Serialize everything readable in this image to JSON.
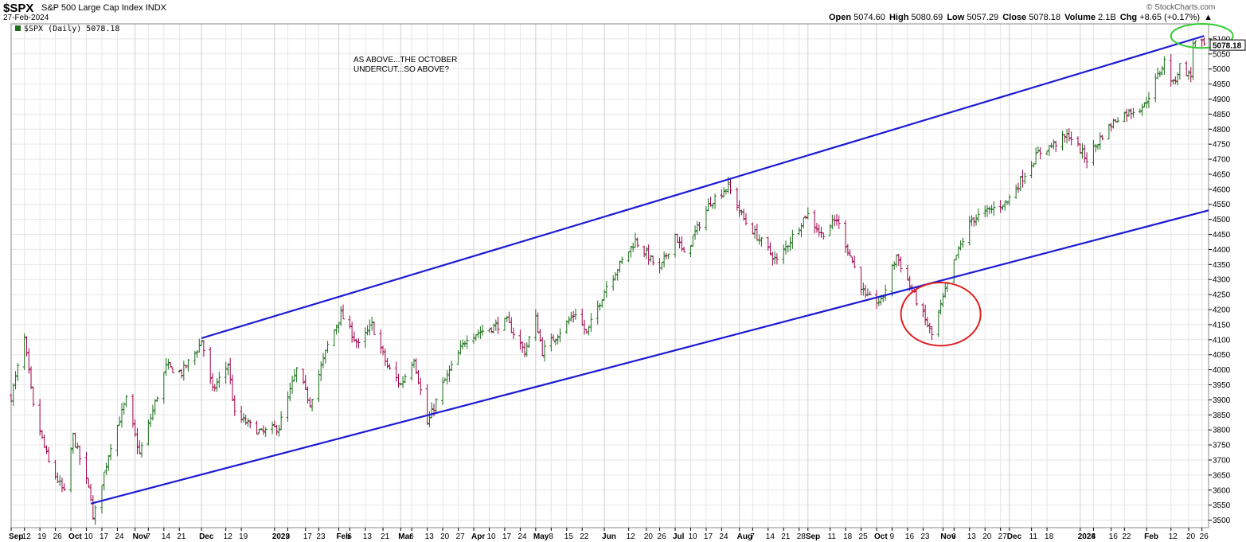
{
  "header": {
    "symbol": "$SPX",
    "name": "S&P 500 Large Cap Index",
    "exchange": "INDX",
    "date": "27-Feb-2024",
    "brand": "© StockCharts.com",
    "open_label": "Open",
    "open": "5074.60",
    "high_label": "High",
    "high": "5080.69",
    "low_label": "Low",
    "low": "5057.29",
    "close_label": "Close",
    "close": "5078.18",
    "volume_label": "Volume",
    "volume": "2.1B",
    "chg_label": "Chg",
    "chg": "+8.65 (+0.17%)",
    "chg_arrow": "▲"
  },
  "chart_data": {
    "type": "ohlc-bar",
    "legend": "$SPX (Daily) 5078.18",
    "last_value_label": "5078.18",
    "annotation": [
      "AS ABOVE...THE OCTOBER",
      "UNDERCUT...SO ABOVE?"
    ],
    "ylim": [
      3475,
      5150
    ],
    "yticks": [
      3500,
      3550,
      3600,
      3650,
      3700,
      3750,
      3800,
      3850,
      3900,
      3950,
      4000,
      4050,
      4100,
      4150,
      4200,
      4250,
      4300,
      4350,
      4400,
      4450,
      4500,
      4550,
      4600,
      4650,
      4700,
      4750,
      4800,
      4850,
      4900,
      4950,
      5000,
      5050,
      5100
    ],
    "xlim": [
      "2022-09-06",
      "2024-02-29"
    ],
    "xticks": [
      {
        "date": "2022-09-06",
        "label": "Sep",
        "major": true
      },
      {
        "date": "2022-09-12",
        "label": "12"
      },
      {
        "date": "2022-09-19",
        "label": "19"
      },
      {
        "date": "2022-09-26",
        "label": "26"
      },
      {
        "date": "2022-10-03",
        "label": "Oct",
        "major": true
      },
      {
        "date": "2022-10-10",
        "label": "10"
      },
      {
        "date": "2022-10-17",
        "label": "17"
      },
      {
        "date": "2022-10-24",
        "label": "24"
      },
      {
        "date": "2022-11-01",
        "label": "Nov",
        "major": true
      },
      {
        "date": "2022-11-07",
        "label": "7"
      },
      {
        "date": "2022-11-14",
        "label": "14"
      },
      {
        "date": "2022-11-21",
        "label": "21"
      },
      {
        "date": "2022-12-01",
        "label": "Dec",
        "major": true
      },
      {
        "date": "2022-12-12",
        "label": "12"
      },
      {
        "date": "2022-12-19",
        "label": "19"
      },
      {
        "date": "2023-01-03",
        "label": "2023",
        "major": true
      },
      {
        "date": "2023-01-09",
        "label": "9"
      },
      {
        "date": "2023-01-17",
        "label": "17"
      },
      {
        "date": "2023-01-23",
        "label": "23"
      },
      {
        "date": "2023-02-01",
        "label": "Feb",
        "major": true
      },
      {
        "date": "2023-02-06",
        "label": "6"
      },
      {
        "date": "2023-02-13",
        "label": "13"
      },
      {
        "date": "2023-02-21",
        "label": "21"
      },
      {
        "date": "2023-03-01",
        "label": "Mar",
        "major": true
      },
      {
        "date": "2023-03-06",
        "label": "6"
      },
      {
        "date": "2023-03-13",
        "label": "13"
      },
      {
        "date": "2023-03-20",
        "label": "20"
      },
      {
        "date": "2023-03-27",
        "label": "27"
      },
      {
        "date": "2023-04-03",
        "label": "Apr",
        "major": true
      },
      {
        "date": "2023-04-10",
        "label": "10"
      },
      {
        "date": "2023-04-17",
        "label": "17"
      },
      {
        "date": "2023-04-24",
        "label": "24"
      },
      {
        "date": "2023-05-01",
        "label": "May",
        "major": true
      },
      {
        "date": "2023-05-08",
        "label": "8"
      },
      {
        "date": "2023-05-15",
        "label": "15"
      },
      {
        "date": "2023-05-22",
        "label": "22"
      },
      {
        "date": "2023-06-01",
        "label": "Jun",
        "major": true
      },
      {
        "date": "2023-06-12",
        "label": "12"
      },
      {
        "date": "2023-06-20",
        "label": "20"
      },
      {
        "date": "2023-06-26",
        "label": "26"
      },
      {
        "date": "2023-07-03",
        "label": "Jul",
        "major": true
      },
      {
        "date": "2023-07-10",
        "label": "10"
      },
      {
        "date": "2023-07-17",
        "label": "17"
      },
      {
        "date": "2023-07-24",
        "label": "24"
      },
      {
        "date": "2023-08-01",
        "label": "Aug",
        "major": true
      },
      {
        "date": "2023-08-07",
        "label": "7"
      },
      {
        "date": "2023-08-14",
        "label": "14"
      },
      {
        "date": "2023-08-21",
        "label": "21"
      },
      {
        "date": "2023-08-28",
        "label": "28"
      },
      {
        "date": "2023-09-01",
        "label": "Sep",
        "major": true
      },
      {
        "date": "2023-09-11",
        "label": "11"
      },
      {
        "date": "2023-09-18",
        "label": "18"
      },
      {
        "date": "2023-09-25",
        "label": "25"
      },
      {
        "date": "2023-10-02",
        "label": "Oct",
        "major": true
      },
      {
        "date": "2023-10-09",
        "label": "9"
      },
      {
        "date": "2023-10-16",
        "label": "16"
      },
      {
        "date": "2023-10-23",
        "label": "23"
      },
      {
        "date": "2023-11-01",
        "label": "Nov",
        "major": true
      },
      {
        "date": "2023-11-06",
        "label": "6"
      },
      {
        "date": "2023-11-13",
        "label": "13"
      },
      {
        "date": "2023-11-20",
        "label": "20"
      },
      {
        "date": "2023-11-27",
        "label": "27"
      },
      {
        "date": "2023-12-01",
        "label": "Dec",
        "major": true
      },
      {
        "date": "2023-12-11",
        "label": "11"
      },
      {
        "date": "2023-12-18",
        "label": "18"
      },
      {
        "date": "2024-01-02",
        "label": "2024",
        "major": true
      },
      {
        "date": "2024-01-08",
        "label": "8"
      },
      {
        "date": "2024-01-16",
        "label": "16"
      },
      {
        "date": "2024-01-22",
        "label": "22"
      },
      {
        "date": "2024-02-01",
        "label": "Feb",
        "major": true
      },
      {
        "date": "2024-02-12",
        "label": "12"
      },
      {
        "date": "2024-02-20",
        "label": "20"
      },
      {
        "date": "2024-02-26",
        "label": "26"
      }
    ],
    "series": {
      "anchors": [
        [
          "2022-09-06",
          3910
        ],
        [
          "2022-09-12",
          4100
        ],
        [
          "2022-09-16",
          3875
        ],
        [
          "2022-09-23",
          3690
        ],
        [
          "2022-09-30",
          3590
        ],
        [
          "2022-10-04",
          3780
        ],
        [
          "2022-10-12",
          3580
        ],
        [
          "2022-10-13",
          3500
        ],
        [
          "2022-10-21",
          3750
        ],
        [
          "2022-10-28",
          3900
        ],
        [
          "2022-11-03",
          3720
        ],
        [
          "2022-11-15",
          4010
        ],
        [
          "2022-11-22",
          3990
        ],
        [
          "2022-11-30",
          4080
        ],
        [
          "2022-12-01",
          4100
        ],
        [
          "2022-12-06",
          3930
        ],
        [
          "2022-12-13",
          4020
        ],
        [
          "2022-12-16",
          3850
        ],
        [
          "2022-12-22",
          3820
        ],
        [
          "2022-12-28",
          3790
        ],
        [
          "2023-01-05",
          3810
        ],
        [
          "2023-01-13",
          4000
        ],
        [
          "2023-01-19",
          3890
        ],
        [
          "2023-01-27",
          4080
        ],
        [
          "2023-02-02",
          4185
        ],
        [
          "2023-02-10",
          4080
        ],
        [
          "2023-02-16",
          4150
        ],
        [
          "2023-02-23",
          4010
        ],
        [
          "2023-03-01",
          3950
        ],
        [
          "2023-03-07",
          4040
        ],
        [
          "2023-03-13",
          3820
        ],
        [
          "2023-03-20",
          3950
        ],
        [
          "2023-03-31",
          4110
        ],
        [
          "2023-04-18",
          4160
        ],
        [
          "2023-04-26",
          4060
        ],
        [
          "2023-05-01",
          4170
        ],
        [
          "2023-05-04",
          4060
        ],
        [
          "2023-05-19",
          4190
        ],
        [
          "2023-05-24",
          4120
        ],
        [
          "2023-06-02",
          4280
        ],
        [
          "2023-06-15",
          4430
        ],
        [
          "2023-06-26",
          4330
        ],
        [
          "2023-07-03",
          4450
        ],
        [
          "2023-07-07",
          4380
        ],
        [
          "2023-07-19",
          4560
        ],
        [
          "2023-07-27",
          4610
        ],
        [
          "2023-08-03",
          4500
        ],
        [
          "2023-08-18",
          4360
        ],
        [
          "2023-08-31",
          4515
        ],
        [
          "2023-09-01",
          4515
        ],
        [
          "2023-09-07",
          4450
        ],
        [
          "2023-09-14",
          4500
        ],
        [
          "2023-09-27",
          4240
        ],
        [
          "2023-10-04",
          4225
        ],
        [
          "2023-10-11",
          4380
        ],
        [
          "2023-10-20",
          4230
        ],
        [
          "2023-10-27",
          4115
        ],
        [
          "2023-11-01",
          4235
        ],
        [
          "2023-11-07",
          4380
        ],
        [
          "2023-11-14",
          4500
        ],
        [
          "2023-11-30",
          4560
        ],
        [
          "2023-12-14",
          4720
        ],
        [
          "2023-12-28",
          4780
        ],
        [
          "2024-01-05",
          4700
        ],
        [
          "2024-01-12",
          4780
        ],
        [
          "2024-01-19",
          4840
        ],
        [
          "2024-01-31",
          4880
        ],
        [
          "2024-02-09",
          5025
        ],
        [
          "2024-02-13",
          4950
        ],
        [
          "2024-02-16",
          5010
        ],
        [
          "2024-02-21",
          4975
        ],
        [
          "2024-02-22",
          5090
        ],
        [
          "2024-02-27",
          5078
        ]
      ]
    },
    "trendlines": [
      {
        "color": "#1a1ad6",
        "from": [
          "2022-12-01",
          4105
        ],
        "to": [
          "2024-02-27",
          5110
        ]
      },
      {
        "color": "#1a1ad6",
        "from": [
          "2022-10-12",
          3555
        ],
        "to": [
          "2024-02-29",
          4530
        ]
      }
    ],
    "highlights": [
      {
        "color": "#e01f1f",
        "center": [
          "2023-10-31",
          4185
        ],
        "radius_days": 18,
        "radius_value": 105
      },
      {
        "color": "#33cc33",
        "center": [
          "2024-02-26",
          5110
        ],
        "radius_days": 14,
        "radius_value": 40
      }
    ],
    "grid": true,
    "up_color": "#1a6e1a",
    "down_color": "#a0004a",
    "axis_position": "right"
  }
}
